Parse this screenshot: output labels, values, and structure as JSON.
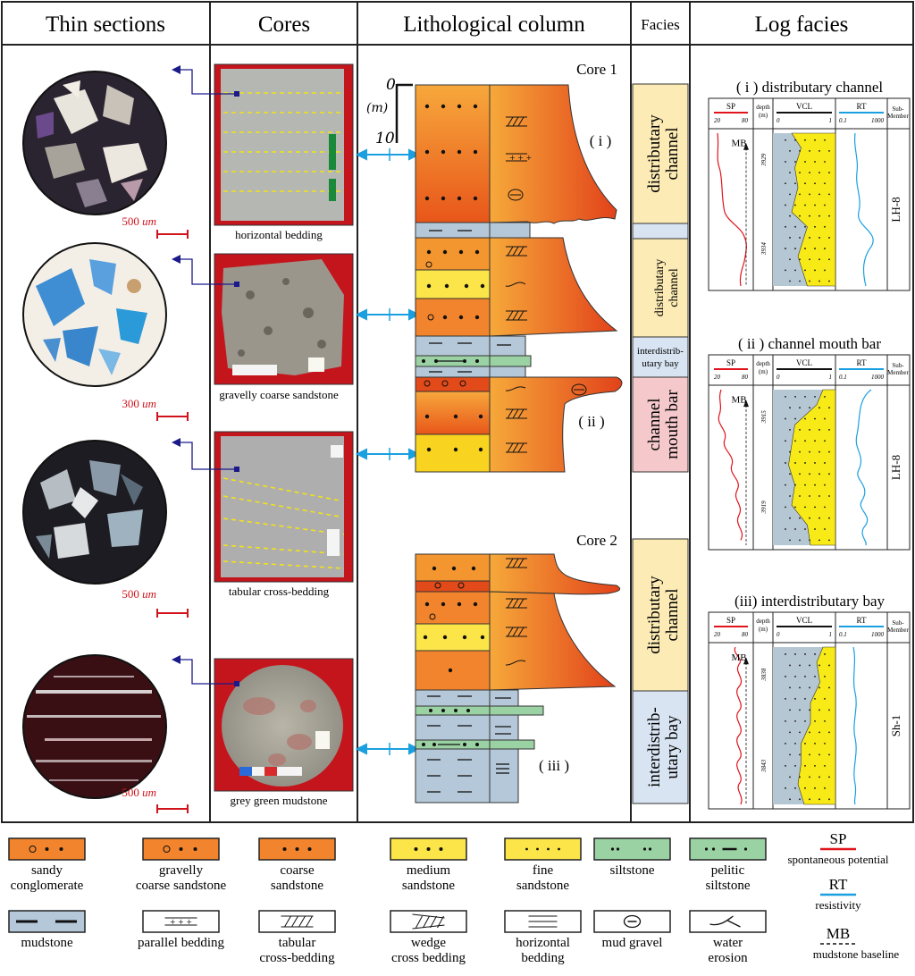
{
  "headers": {
    "thin_sections": "Thin sections",
    "cores": "Cores",
    "lithological_column": "Lithological column",
    "facies": "Facies",
    "log_facies": "Log facies"
  },
  "thin_sections": [
    {
      "scale_value": "500",
      "scale_unit": "um"
    },
    {
      "scale_value": "300",
      "scale_unit": "um"
    },
    {
      "scale_value": "500",
      "scale_unit": "um"
    },
    {
      "scale_value": "500",
      "scale_unit": "um"
    }
  ],
  "cores": [
    {
      "caption": "horizontal bedding"
    },
    {
      "caption": "gravelly coarse sandstone"
    },
    {
      "caption": "tabular cross-bedding"
    },
    {
      "caption": "grey green mudstone"
    }
  ],
  "column": {
    "core1": "Core 1",
    "core2": "Core 2",
    "scale_top": "0",
    "scale_unit": "(m)",
    "scale_bottom": "10",
    "markers": [
      "( i )",
      "( ii )",
      "( iii )"
    ]
  },
  "facies": [
    {
      "lines": [
        "distributary",
        "channel"
      ],
      "color": "#fcebb4"
    },
    {
      "lines": [
        "distributary",
        "channel"
      ],
      "color": "#fcebb4"
    },
    {
      "lines": [
        "interdistrib-",
        "utary bay"
      ],
      "color": "#d8e4f2"
    },
    {
      "lines": [
        "channel",
        "mouth bar"
      ],
      "color": "#f5c9cc"
    },
    {
      "lines": [
        "distributary",
        "channel"
      ],
      "color": "#fcebb4"
    },
    {
      "lines": [
        "interdistrib-",
        "utary bay"
      ],
      "color": "#d8e4f2"
    }
  ],
  "log_facies": [
    {
      "title": "( i ) distributary channel",
      "sp_label": "SP",
      "sp_min": "20",
      "sp_max": "80",
      "depth_label": "depth",
      "depth_unit": "(m)",
      "vcl_label": "VCL",
      "vcl_min": "0",
      "vcl_max": "1",
      "rt_label": "RT",
      "rt_min": "0.1",
      "rt_max": "1000",
      "sub_label_1": "Sub-",
      "sub_label_2": "Member",
      "depths": [
        "3929",
        "3934"
      ],
      "mb": "MB",
      "member": "LH-8"
    },
    {
      "title": "( ii ) channel mouth bar",
      "sp_label": "SP",
      "sp_min": "20",
      "sp_max": "80",
      "depth_label": "depth",
      "depth_unit": "(m)",
      "vcl_label": "VCL",
      "vcl_min": "0",
      "vcl_max": "1",
      "rt_label": "RT",
      "rt_min": "0.1",
      "rt_max": "1000",
      "sub_label_1": "Sub-",
      "sub_label_2": "Member",
      "depths": [
        "3915",
        "3919"
      ],
      "mb": "MB",
      "member": "LH-8"
    },
    {
      "title": "(iii) interdistributary bay",
      "sp_label": "SP",
      "sp_min": "20",
      "sp_max": "80",
      "depth_label": "depth",
      "depth_unit": "(m)",
      "vcl_label": "VCL",
      "vcl_min": "0",
      "vcl_max": "1",
      "rt_label": "RT",
      "rt_min": "0.1",
      "rt_max": "1000",
      "sub_label_1": "Sub-",
      "sub_label_2": "Member",
      "depths": [
        "3838",
        "3843"
      ],
      "mb": "MB",
      "member": "Sh-1"
    }
  ],
  "legend": [
    [
      "sandy",
      "conglomerate"
    ],
    [
      "gravelly",
      "coarse sandstone"
    ],
    [
      "coarse",
      "sandstone"
    ],
    [
      "medium",
      "sandstone"
    ],
    [
      "fine",
      "sandstone"
    ],
    [
      "siltstone"
    ],
    [
      "pelitic",
      "siltstone"
    ],
    [
      "mudstone"
    ],
    [
      "parallel bedding"
    ],
    [
      "tabular",
      "cross-bedding"
    ],
    [
      "wedge",
      "cross bedding"
    ],
    [
      "horizontal",
      "bedding"
    ],
    [
      "mud gravel"
    ],
    [
      "water",
      "erosion"
    ]
  ],
  "curve_legend": {
    "sp": "SP",
    "sp_desc": "spontaneous potential",
    "rt": "RT",
    "rt_desc": "resistivity",
    "mb": "MB",
    "mb_desc": "mudstone baseline"
  },
  "colors": {
    "sp": "#e0141c",
    "rt": "#1aa0e0",
    "vcl_fill": "#f7ea17",
    "vcl_bg": "#b6c7d4",
    "arrow": "#1a1a8a",
    "tie_arrow": "#1aa0e0",
    "mudstone": "#b5c8d9",
    "siltstone": "#9bd2a4"
  }
}
